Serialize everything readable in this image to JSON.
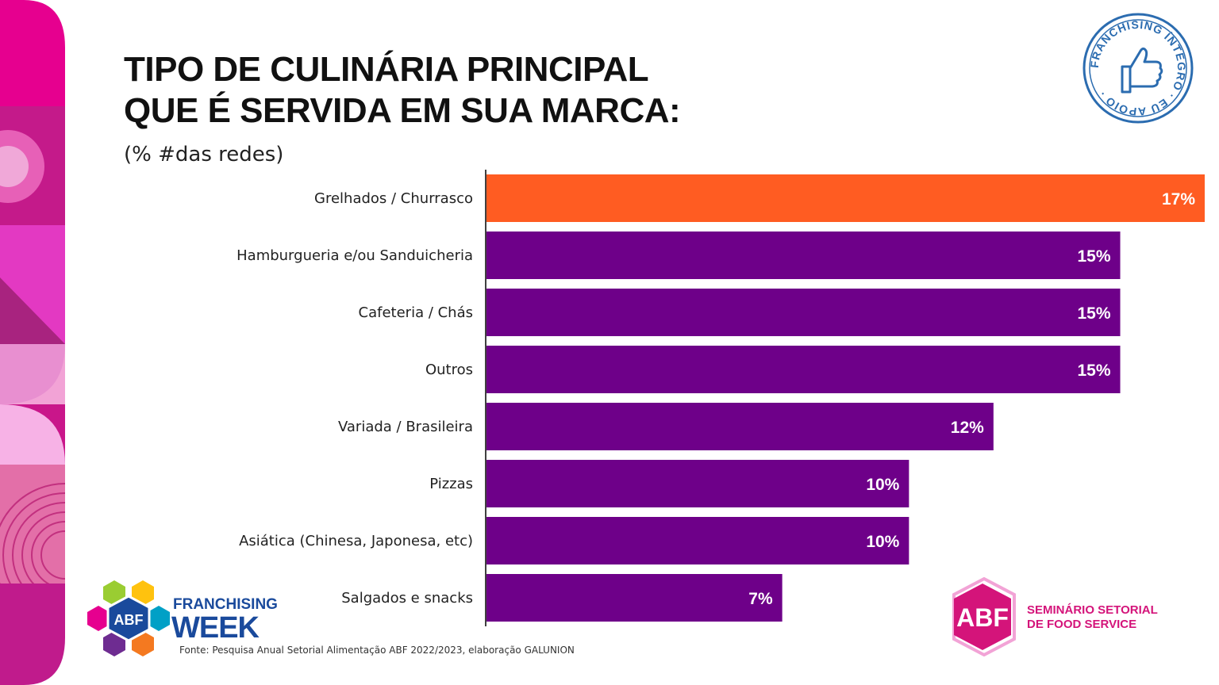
{
  "subtitle": "(% #das redes)",
  "source": "Fonte: Pesquisa Anual Setorial Alimentação ABF 2022/2023, elaboração GALUNION",
  "seal": {
    "text": "FRANCHISING ÍNTEGRO · EU APOIO ·",
    "icon": "thumbs-up-icon",
    "color": "#2b6cb0"
  },
  "franchising_week_logo": {
    "badge": "ABF",
    "line1": "FRANCHISING",
    "line2": "WEEK",
    "color": "#1a4a9c"
  },
  "seminar_logo": {
    "badge": "ABF",
    "line1": "SEMINÁRIO SETORIAL",
    "line2": "DE FOOD SERVICE",
    "color": "#d4147a"
  },
  "colors": {
    "highlight": "#ff5c22",
    "bar": "#6e0089",
    "accent": "#e6008f"
  },
  "chart_data": {
    "type": "bar",
    "orientation": "horizontal",
    "title": "TIPO DE CULINÁRIA PRINCIPAL QUE É SERVIDA EM SUA MARCA:",
    "title_lines": [
      "TIPO DE CULINÁRIA PRINCIPAL",
      "QUE É SERVIDA EM SUA MARCA:"
    ],
    "categories": [
      "Grelhados / Churrasco",
      "Hamburgueria e/ou Sanduicheria",
      "Cafeteria / Chás",
      "Outros",
      "Variada / Brasileira",
      "Pizzas",
      "Asiática (Chinesa, Japonesa, etc)",
      "Salgados e snacks"
    ],
    "values": [
      17,
      15,
      15,
      15,
      12,
      10,
      10,
      7
    ],
    "labels": [
      "17%",
      "15%",
      "15%",
      "15%",
      "12%",
      "10%",
      "10%",
      "7%"
    ],
    "highlight_index": 0,
    "xlim": [
      0,
      17
    ],
    "grid": false,
    "legend": "none"
  }
}
